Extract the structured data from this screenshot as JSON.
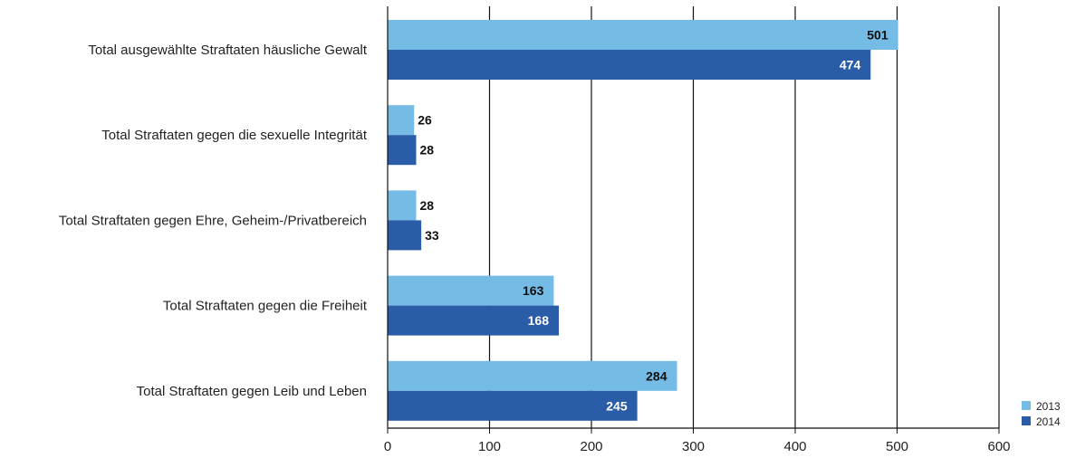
{
  "chart_data": {
    "type": "bar",
    "orientation": "horizontal",
    "categories": [
      "Total ausgewählte Straftaten häusliche Gewalt",
      "Total Straftaten gegen die sexuelle Integrität",
      "Total Straftaten gegen Ehre, Geheim-/Privatbereich",
      "Total Straftaten gegen die Freiheit",
      "Total Straftaten gegen Leib und Leben"
    ],
    "series": [
      {
        "name": "2013",
        "values": [
          501,
          26,
          28,
          163,
          284
        ],
        "color": "#74bbe6"
      },
      {
        "name": "2014",
        "values": [
          474,
          28,
          33,
          168,
          245
        ],
        "color": "#2a5ca8"
      }
    ],
    "x_ticks": [
      "0",
      "100",
      "200",
      "300",
      "400",
      "500",
      "600"
    ],
    "xlim": [
      0,
      600
    ],
    "grid": true,
    "legend_position": "bottom-right",
    "title": "",
    "xlabel": "",
    "ylabel": ""
  }
}
